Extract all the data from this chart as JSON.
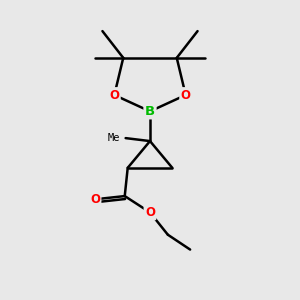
{
  "background_color": "#e8e8e8",
  "bond_color": "#000000",
  "bond_width": 1.8,
  "atom_colors": {
    "B": "#00bb00",
    "O": "#ff0000",
    "C": "#000000"
  },
  "figsize": [
    3.0,
    3.0
  ],
  "dpi": 100
}
